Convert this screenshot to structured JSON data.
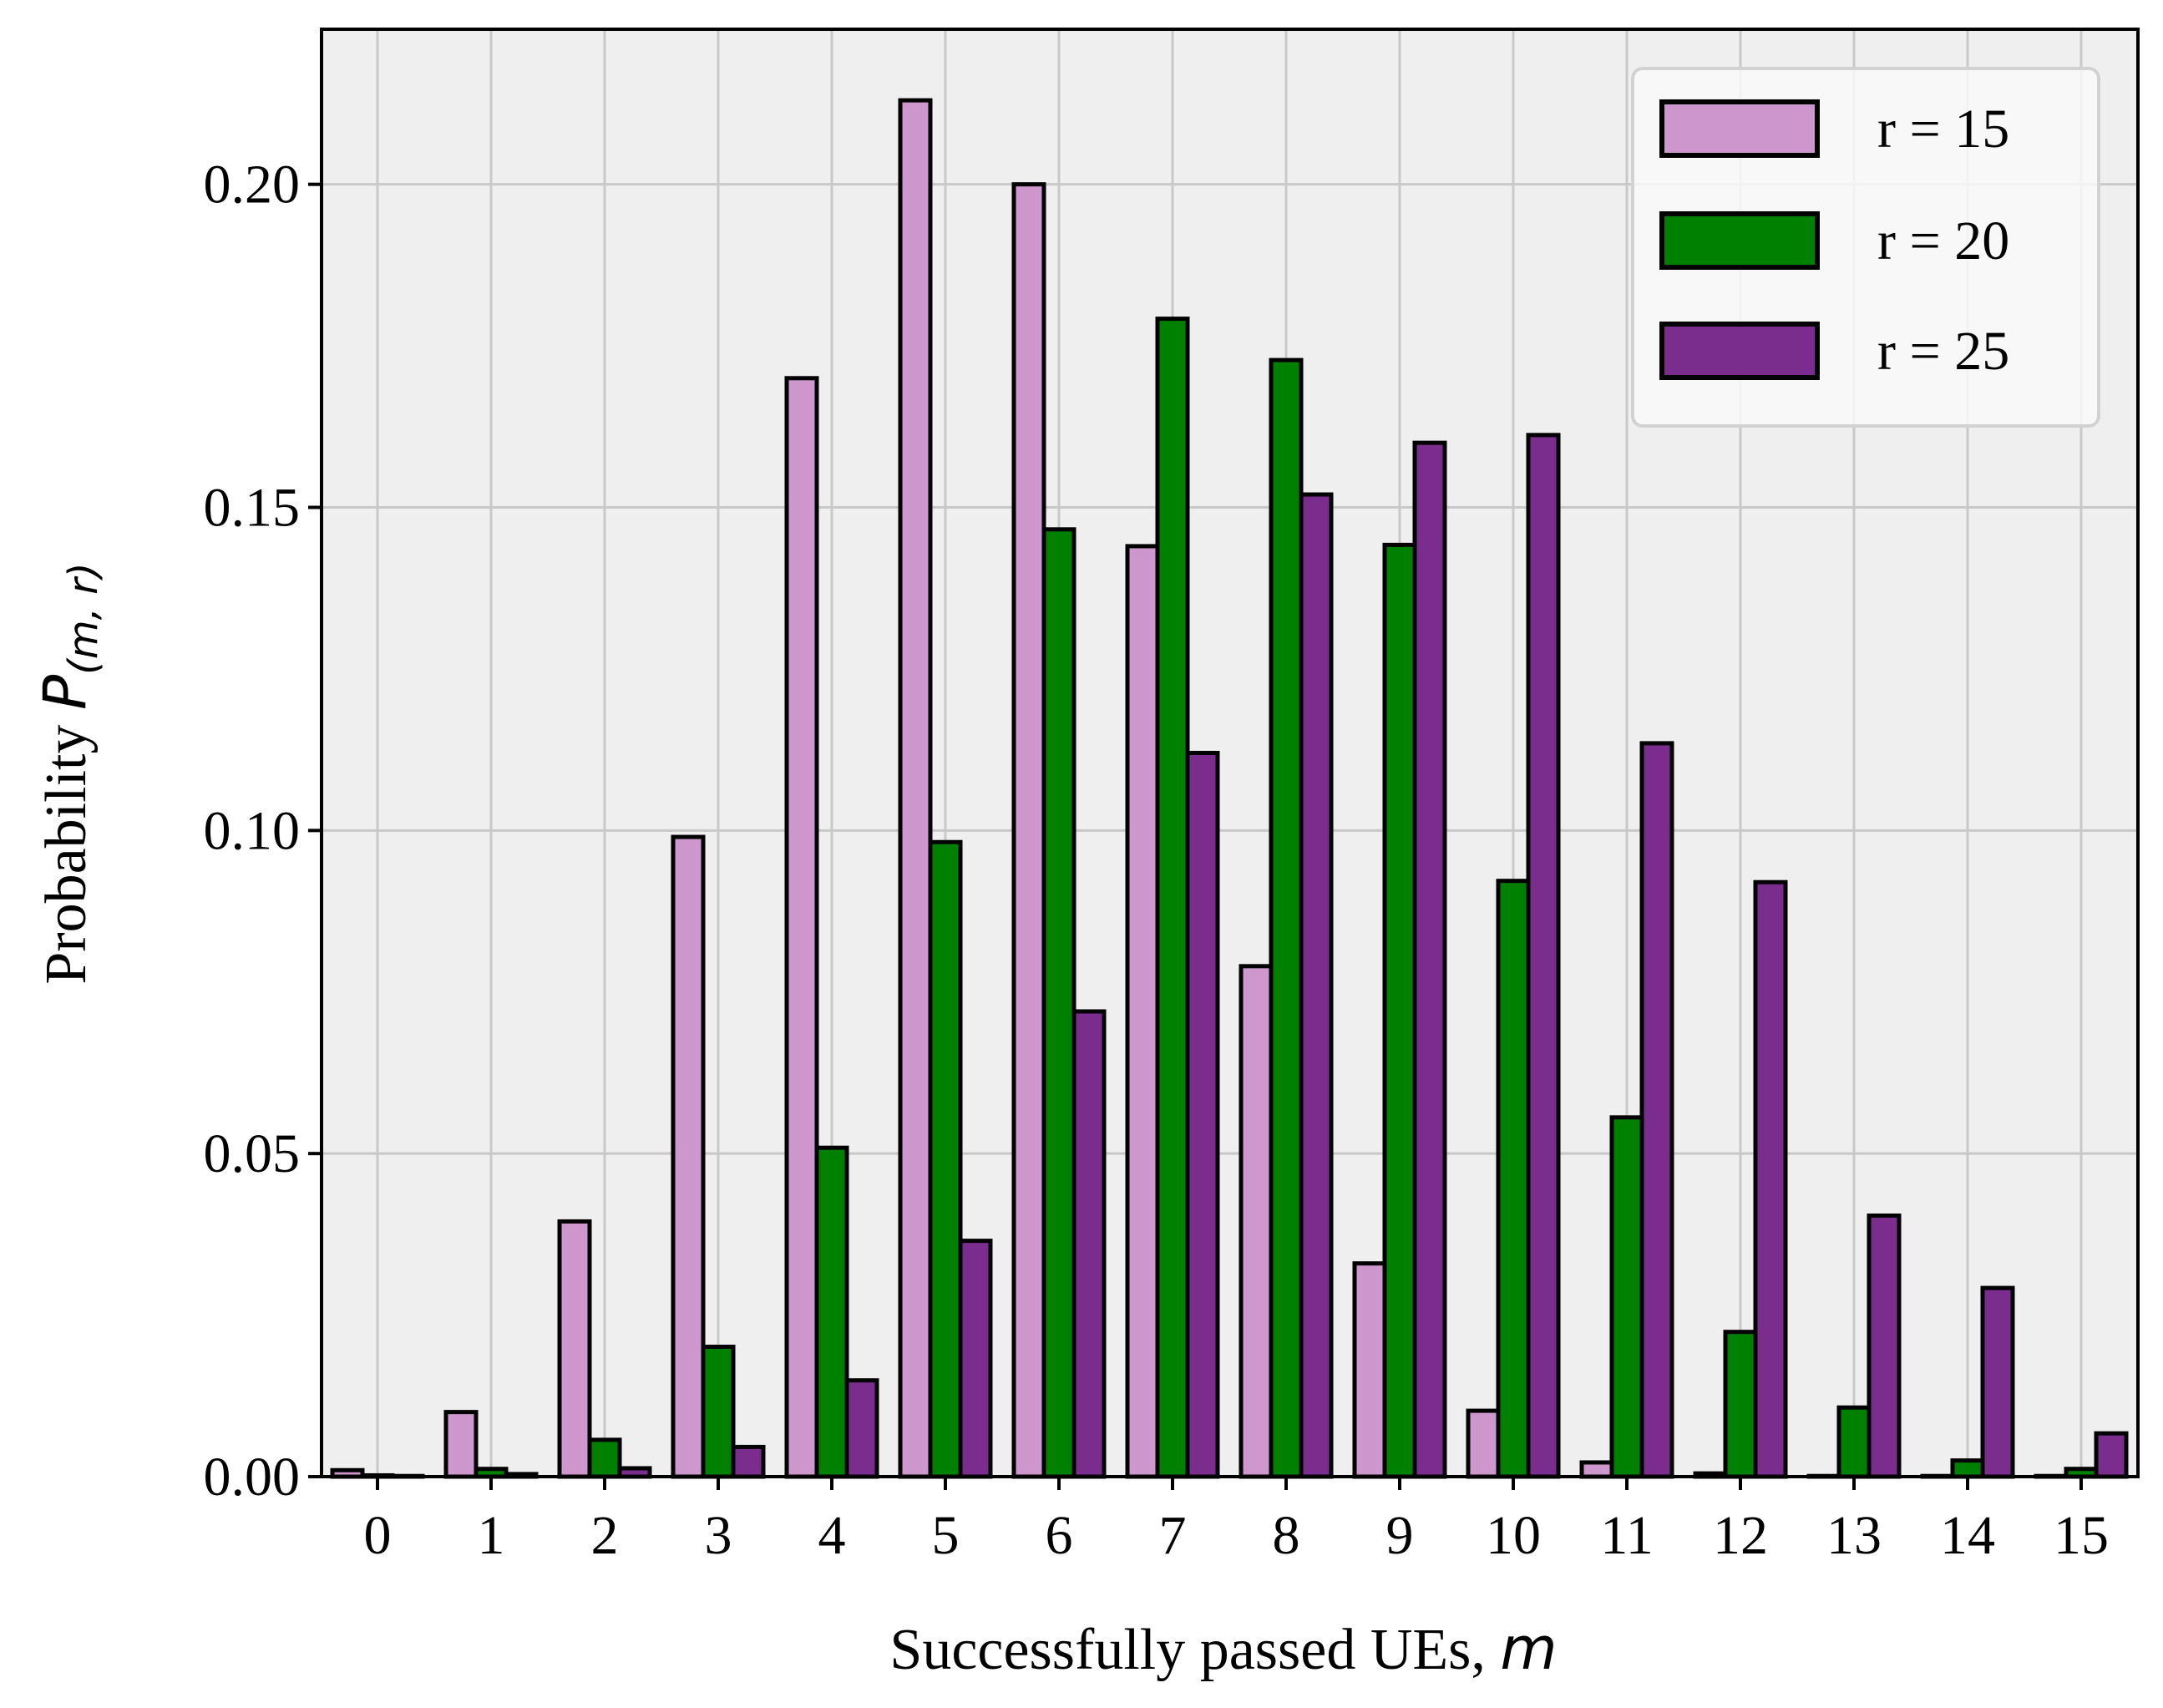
{
  "chart_data": {
    "type": "bar",
    "categories": [
      "0",
      "1",
      "2",
      "3",
      "4",
      "5",
      "6",
      "7",
      "8",
      "9",
      "10",
      "11",
      "12",
      "13",
      "14",
      "15"
    ],
    "series": [
      {
        "name": "r = 15",
        "color": "#cd96cd",
        "values": [
          0.001,
          0.01,
          0.0395,
          0.099,
          0.17,
          0.213,
          0.2,
          0.144,
          0.079,
          0.033,
          0.0102,
          0.0022,
          0.0005,
          0.0001,
          0.0001,
          0.0001
        ]
      },
      {
        "name": "r = 20",
        "color": "#008000",
        "values": [
          0.0002,
          0.0012,
          0.0057,
          0.0201,
          0.0509,
          0.0982,
          0.1466,
          0.1792,
          0.1728,
          0.1442,
          0.0922,
          0.0556,
          0.0224,
          0.0107,
          0.0025,
          0.0012
        ]
      },
      {
        "name": "r = 25",
        "color": "#7b2d8e",
        "values": [
          0.0001,
          0.0004,
          0.0013,
          0.0046,
          0.0149,
          0.0365,
          0.072,
          0.112,
          0.152,
          0.16,
          0.1612,
          0.1135,
          0.092,
          0.0404,
          0.0292,
          0.0067
        ]
      }
    ],
    "xlabel_text": "Successfully passed UEs, ",
    "xlabel_var": "m",
    "ylabel_text": "Probability ",
    "ylabel_var": "P",
    "ylabel_sub": "(m, r)",
    "ylim": [
      0,
      0.224
    ],
    "yticks": [
      "0.00",
      "0.05",
      "0.10",
      "0.15",
      "0.20"
    ],
    "ytick_values": [
      0,
      0.05,
      0.1,
      0.15,
      0.2
    ],
    "grid": true,
    "legend_position": "top-right",
    "plot_background": "#efefef",
    "grid_color": "#c8c8c8"
  }
}
